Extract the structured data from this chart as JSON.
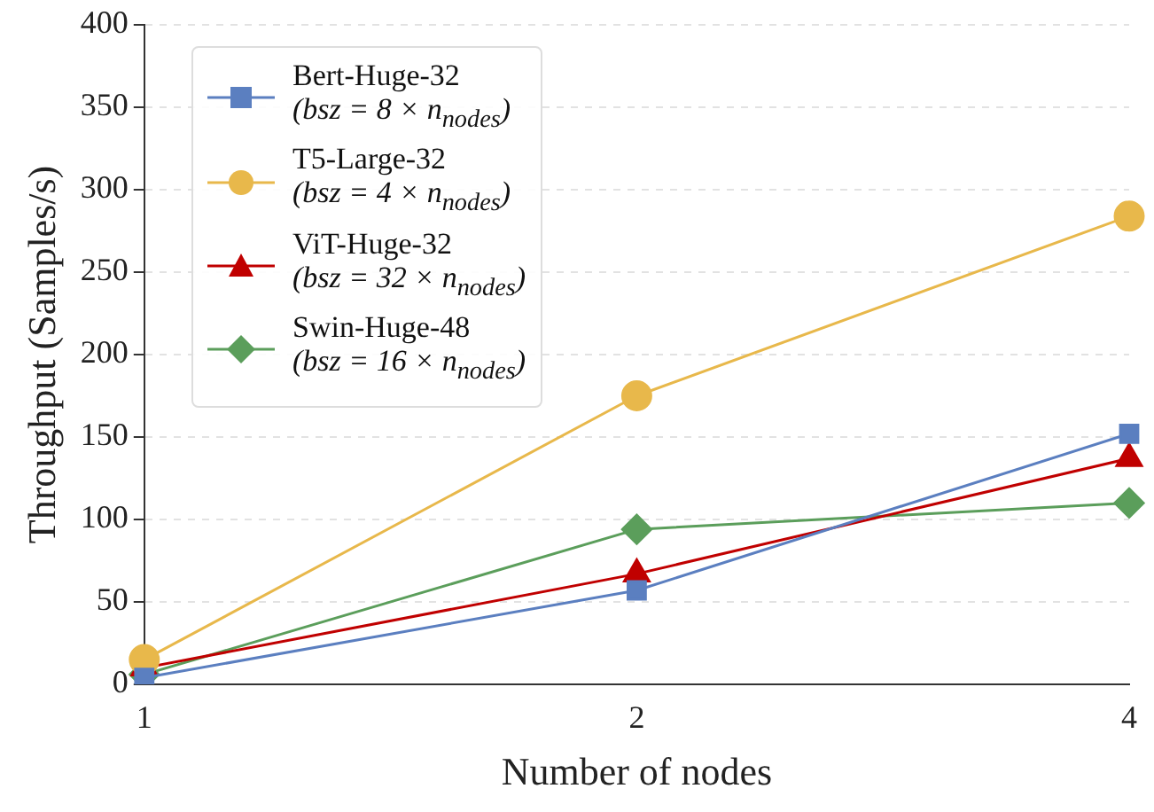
{
  "chart_data": {
    "type": "line",
    "xlabel": "Number of nodes",
    "ylabel": "Throughput (Samples/s)",
    "categories": [
      "1",
      "2",
      "4"
    ],
    "ylim": [
      0,
      400
    ],
    "yticks": [
      0,
      50,
      100,
      150,
      200,
      250,
      300,
      350,
      400
    ],
    "grid": "y",
    "legend": "top left",
    "line_style": "solid",
    "series": [
      {
        "name": "Bert-Huge-32\n(bsz = 8 × n$_{nodes}$)",
        "color": "#5b7fc0",
        "marker": "square",
        "values": [
          4,
          57,
          152
        ]
      },
      {
        "name": "T5-Large-32\n(bsz = 4 × n$_{nodes}$)",
        "color": "#e8b84b",
        "marker": "circle",
        "values": [
          15,
          175,
          284
        ]
      },
      {
        "name": "ViT-Huge-32\n(bsz = 32 × n$_{nodes}$)",
        "color": "#c00000",
        "marker": "triangle",
        "values": [
          10,
          67,
          137
        ]
      },
      {
        "name": "Swin-Huge-48\n(bsz = 16 × n$_{nodes}$)",
        "color": "#5b9e5b",
        "marker": "diamond",
        "values": [
          6,
          94,
          110
        ]
      }
    ]
  }
}
